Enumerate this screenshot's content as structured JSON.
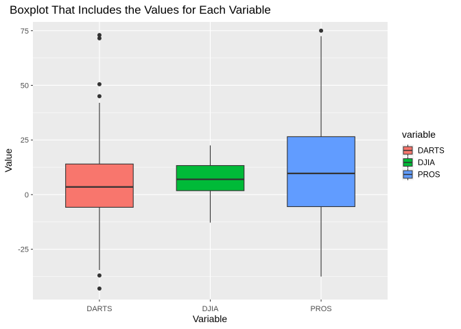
{
  "chart_data": {
    "type": "boxplot",
    "title": "Boxplot That Includes the Values for Each Variable",
    "xlabel": "Variable",
    "ylabel": "Value",
    "ylim": [
      -48,
      79
    ],
    "yticks": [
      -25,
      0,
      25,
      50,
      75
    ],
    "ytick_labels": [
      "-25",
      "0",
      "25",
      "50",
      "75"
    ],
    "grid": true,
    "legend_position": "right",
    "legend_title": "variable",
    "categories": [
      "DARTS",
      "DJIA",
      "PROS"
    ],
    "boxes": [
      {
        "name": "DARTS",
        "color": "#F8766D",
        "whisker_low": -34.5,
        "q1": -5.8,
        "median": 3.5,
        "q3": 14.0,
        "whisker_high": 42.0,
        "outliers": [
          73.0,
          71.5,
          50.5,
          45.0,
          -37.0,
          -43.0
        ]
      },
      {
        "name": "DJIA",
        "color": "#00BA38",
        "whisker_low": -12.8,
        "q1": 1.8,
        "median": 7.0,
        "q3": 13.3,
        "whisker_high": 22.5,
        "outliers": []
      },
      {
        "name": "PROS",
        "color": "#619CFF",
        "whisker_low": -37.5,
        "q1": -5.5,
        "median": 9.7,
        "q3": 26.5,
        "whisker_high": 72.5,
        "outliers": [
          75.0
        ]
      }
    ]
  }
}
